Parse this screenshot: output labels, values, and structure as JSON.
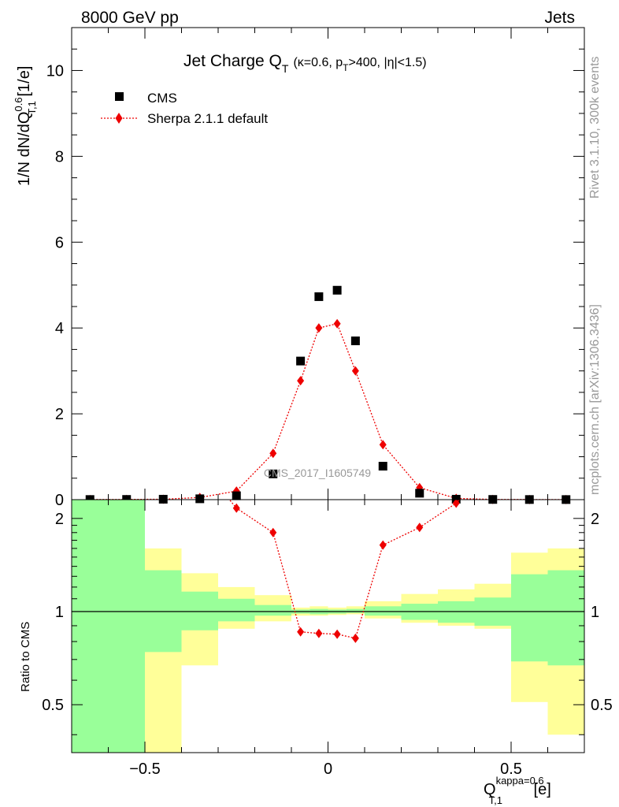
{
  "header": {
    "left": "8000 GeV pp",
    "right": "Jets"
  },
  "side_texts": {
    "top": "Rivet 3.1.10,  300k events",
    "bottom": "mcplots.cern.ch [arXiv:1306.3436]"
  },
  "chart_data": [
    {
      "type": "scatter",
      "panel": "main",
      "title_main": "Jet Charge Q",
      "title_sub": "T",
      "title_cond": "(κ=0.6, p",
      "title_cond_sub": "T",
      "title_cond_rest": ">400, |η|<1.5)",
      "ylabel": "1/N dN/dQ",
      "ylabel_sup": "0.6",
      "ylabel_sub": "T,1",
      "ylabel_unit": " [1/e]",
      "watermark": "CMS_2017_I1605749",
      "xlim": [
        -0.7,
        0.7
      ],
      "ylim": [
        0,
        11
      ],
      "yticks": [
        0,
        2,
        4,
        6,
        8,
        10
      ],
      "bin_centers": [
        -0.65,
        -0.55,
        -0.45,
        -0.35,
        -0.25,
        -0.15,
        -0.075,
        -0.025,
        0.025,
        0.075,
        0.15,
        0.25,
        0.35,
        0.45,
        0.55,
        0.65
      ],
      "series": [
        {
          "name": "CMS",
          "marker": "square",
          "color": "#000000",
          "x": [
            -0.65,
            -0.55,
            -0.45,
            -0.35,
            -0.25,
            -0.15,
            -0.075,
            -0.025,
            0.025,
            0.075,
            0.15,
            0.25,
            0.35,
            0.45,
            0.55,
            0.65
          ],
          "y": [
            0.003,
            0.005,
            0.01,
            0.02,
            0.09,
            0.6,
            3.23,
            4.73,
            4.88,
            3.7,
            0.78,
            0.15,
            0.01,
            0.005,
            0.003,
            0.002
          ]
        },
        {
          "name": "Sherpa 2.1.1 default",
          "marker": "diamond",
          "color": "#ee0000",
          "x": [
            -0.65,
            -0.55,
            -0.45,
            -0.35,
            -0.25,
            -0.15,
            -0.075,
            -0.025,
            0.025,
            0.075,
            0.15,
            0.25,
            0.35,
            0.45,
            0.55,
            0.65
          ],
          "y": [
            0.003,
            0.005,
            0.01,
            0.05,
            0.2,
            1.08,
            2.77,
            4.0,
            4.1,
            3.0,
            1.28,
            0.28,
            0.03,
            0.005,
            0.003,
            0.002
          ]
        }
      ]
    },
    {
      "type": "line",
      "panel": "ratio",
      "ylabel": "Ratio to CMS",
      "xlabel": "Q",
      "xlabel_sub": "T,1",
      "xlabel_sup": "kappa=0.6",
      "xlabel_unit": " [e]",
      "xlim": [
        -0.7,
        0.7
      ],
      "ylim": [
        0.35,
        2.3
      ],
      "yticks": [
        0.5,
        1,
        2
      ],
      "xticks": [
        -0.5,
        0,
        0.5
      ],
      "xtick_labels": [
        "−0.5",
        "0",
        "0.5"
      ],
      "bin_edges": [
        -0.7,
        -0.6,
        -0.5,
        -0.4,
        -0.3,
        -0.2,
        -0.1,
        -0.05,
        0,
        0.05,
        0.1,
        0.2,
        0.3,
        0.4,
        0.5,
        0.6,
        0.7
      ],
      "band_inner": {
        "color": "#99ff99",
        "low": [
          0.35,
          0.35,
          0.74,
          0.87,
          0.93,
          0.97,
          0.985,
          0.98,
          0.985,
          0.99,
          0.97,
          0.94,
          0.92,
          0.9,
          0.69,
          0.67
        ],
        "high": [
          2.3,
          2.3,
          1.36,
          1.16,
          1.1,
          1.05,
          1.015,
          1.02,
          1.015,
          1.02,
          1.04,
          1.06,
          1.08,
          1.11,
          1.32,
          1.36
        ]
      },
      "band_outer": {
        "color": "#ffff99",
        "low": [
          0.35,
          0.35,
          0.35,
          0.67,
          0.88,
          0.93,
          0.97,
          0.97,
          0.975,
          0.98,
          0.95,
          0.92,
          0.9,
          0.88,
          0.51,
          0.4
        ],
        "high": [
          2.3,
          2.3,
          1.6,
          1.33,
          1.2,
          1.13,
          1.03,
          1.04,
          1.03,
          1.04,
          1.08,
          1.14,
          1.18,
          1.23,
          1.55,
          1.6
        ]
      },
      "series": [
        {
          "name": "Sherpa 2.1.1 default",
          "color": "#ee0000",
          "x": [
            -0.25,
            -0.15,
            -0.075,
            -0.025,
            0.025,
            0.075,
            0.15,
            0.25,
            0.35
          ],
          "y": [
            2.16,
            1.8,
            0.86,
            0.85,
            0.845,
            0.82,
            1.64,
            1.87,
            2.24
          ]
        }
      ]
    }
  ]
}
